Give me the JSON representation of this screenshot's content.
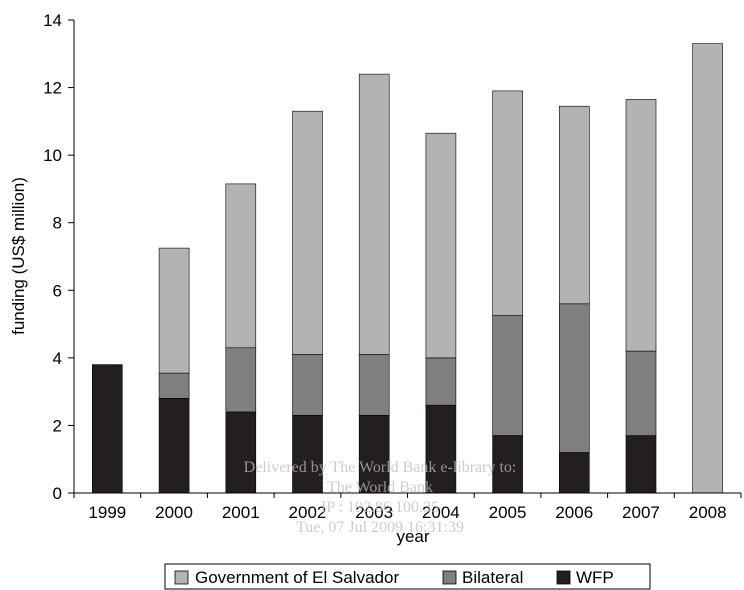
{
  "chart_data": {
    "type": "bar",
    "stacked": true,
    "categories": [
      "1999",
      "2000",
      "2001",
      "2002",
      "2003",
      "2004",
      "2005",
      "2006",
      "2007",
      "2008"
    ],
    "series": [
      {
        "name": "WFP",
        "color": "#231f20",
        "values": [
          3.8,
          2.8,
          2.4,
          2.3,
          2.3,
          2.6,
          1.7,
          1.2,
          1.7,
          0.0
        ]
      },
      {
        "name": "Bilateral",
        "color": "#7f7f7f",
        "values": [
          0.0,
          0.75,
          1.9,
          1.8,
          1.8,
          1.4,
          3.55,
          4.4,
          2.5,
          0.0
        ]
      },
      {
        "name": "Government of El Salvador",
        "color": "#b3b3b3",
        "values": [
          0.0,
          3.7,
          4.85,
          7.2,
          8.3,
          6.65,
          6.65,
          5.85,
          7.45,
          13.3
        ]
      }
    ],
    "xlabel": "year",
    "ylabel": "funding (US$ million)",
    "ylim": [
      0,
      14
    ],
    "yticks": [
      "0",
      "2",
      "4",
      "6",
      "8",
      "10",
      "12",
      "14"
    ],
    "grid": false,
    "legend_position": "bottom",
    "legend_order": [
      "Government of El Salvador",
      "Bilateral",
      "WFP"
    ]
  },
  "watermark": {
    "lines": [
      "Delivered by The World Bank e-library to:",
      "The World Bank",
      "IP : 192.86.100.35",
      "Tue, 07 Jul 2009 16:31:39"
    ]
  }
}
